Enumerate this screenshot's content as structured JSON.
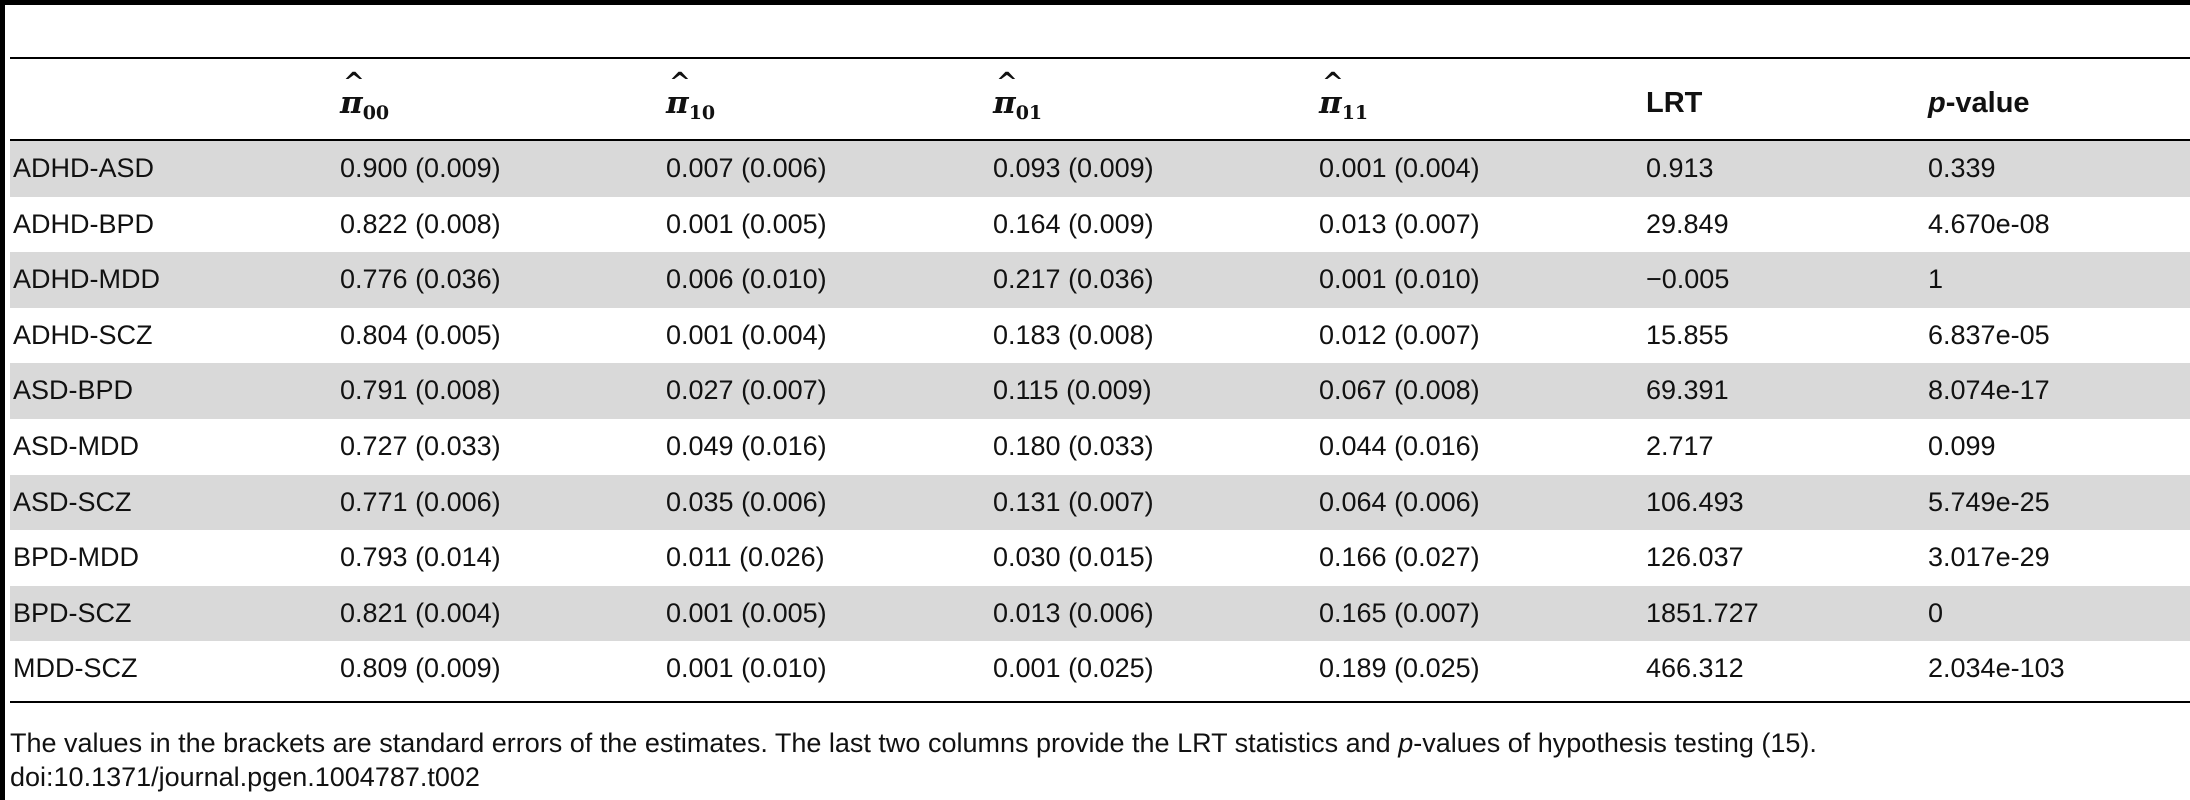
{
  "table": {
    "headers": [
      "",
      "π̂00",
      "π̂10",
      "π̂01",
      "π̂11",
      "LRT",
      "p-value"
    ],
    "header_parts": {
      "pi_subs": [
        "00",
        "10",
        "01",
        "11"
      ],
      "lrt": "LRT",
      "pvalue_italic": "p",
      "pvalue_rest": "-value"
    },
    "rows": [
      [
        "ADHD-ASD",
        "0.900 (0.009)",
        "0.007 (0.006)",
        "0.093 (0.009)",
        "0.001 (0.004)",
        "0.913",
        "0.339"
      ],
      [
        "ADHD-BPD",
        "0.822 (0.008)",
        "0.001 (0.005)",
        "0.164 (0.009)",
        "0.013 (0.007)",
        "29.849",
        "4.670e-08"
      ],
      [
        "ADHD-MDD",
        "0.776 (0.036)",
        "0.006 (0.010)",
        "0.217 (0.036)",
        "0.001 (0.010)",
        "−0.005",
        "1"
      ],
      [
        "ADHD-SCZ",
        "0.804 (0.005)",
        "0.001 (0.004)",
        "0.183 (0.008)",
        "0.012 (0.007)",
        "15.855",
        "6.837e-05"
      ],
      [
        "ASD-BPD",
        "0.791 (0.008)",
        "0.027 (0.007)",
        "0.115 (0.009)",
        "0.067 (0.008)",
        "69.391",
        "8.074e-17"
      ],
      [
        "ASD-MDD",
        "0.727 (0.033)",
        "0.049 (0.016)",
        "0.180 (0.033)",
        "0.044 (0.016)",
        "2.717",
        "0.099"
      ],
      [
        "ASD-SCZ",
        "0.771 (0.006)",
        "0.035 (0.006)",
        "0.131 (0.007)",
        "0.064 (0.006)",
        "106.493",
        "5.749e-25"
      ],
      [
        "BPD-MDD",
        "0.793 (0.014)",
        "0.011 (0.026)",
        "0.030 (0.015)",
        "0.166 (0.027)",
        "126.037",
        "3.017e-29"
      ],
      [
        "BPD-SCZ",
        "0.821 (0.004)",
        "0.001 (0.005)",
        "0.013 (0.006)",
        "0.165 (0.007)",
        "1851.727",
        "0"
      ],
      [
        "MDD-SCZ",
        "0.809 (0.009)",
        "0.001 (0.010)",
        "0.001 (0.025)",
        "0.189 (0.025)",
        "466.312",
        "2.034e-103"
      ]
    ]
  },
  "footnote": {
    "line1_a": "The values in the brackets are standard errors of the estimates. The last two columns provide the LRT statistics and ",
    "line1_italic": "p",
    "line1_b": "-values of hypothesis testing (15).",
    "doi": "doi:10.1371/journal.pgen.1004787.t002"
  },
  "colors": {
    "row_shade": "#d9d9d9",
    "rule": "#000000",
    "text": "#111111"
  }
}
